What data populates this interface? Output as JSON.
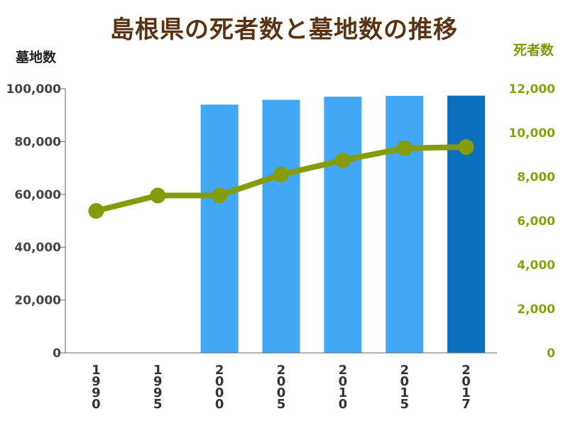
{
  "chart_data": {
    "type": "bar+line",
    "title": "島根県の死者数と墓地数の推移",
    "categories": [
      "1990",
      "1995",
      "2000",
      "2005",
      "2010",
      "2015",
      "2017"
    ],
    "y_left": {
      "label": "墓地数",
      "ticks": [
        "0",
        "20,000",
        "40,000",
        "60,000",
        "80,000",
        "100,000"
      ],
      "range": [
        0,
        100000
      ]
    },
    "y_right": {
      "label": "死者数",
      "ticks": [
        "0",
        "2,000",
        "4,000",
        "6,000",
        "8,000",
        "10,000",
        "12,000"
      ],
      "range": [
        0,
        12000
      ]
    },
    "series": [
      {
        "type": "bar",
        "axis": "left",
        "values": [
          null,
          null,
          94000,
          95800,
          97000,
          97300,
          97400
        ],
        "colors": [
          "#42a7f5",
          "#42a7f5",
          "#42a7f5",
          "#42a7f5",
          "#42a7f5",
          "#42a7f5",
          "#0a6fbd"
        ]
      },
      {
        "type": "line",
        "axis": "right",
        "values": [
          6450,
          7150,
          7150,
          8100,
          8750,
          9300,
          9350
        ],
        "color": "#859b07"
      }
    ],
    "grid": false
  }
}
